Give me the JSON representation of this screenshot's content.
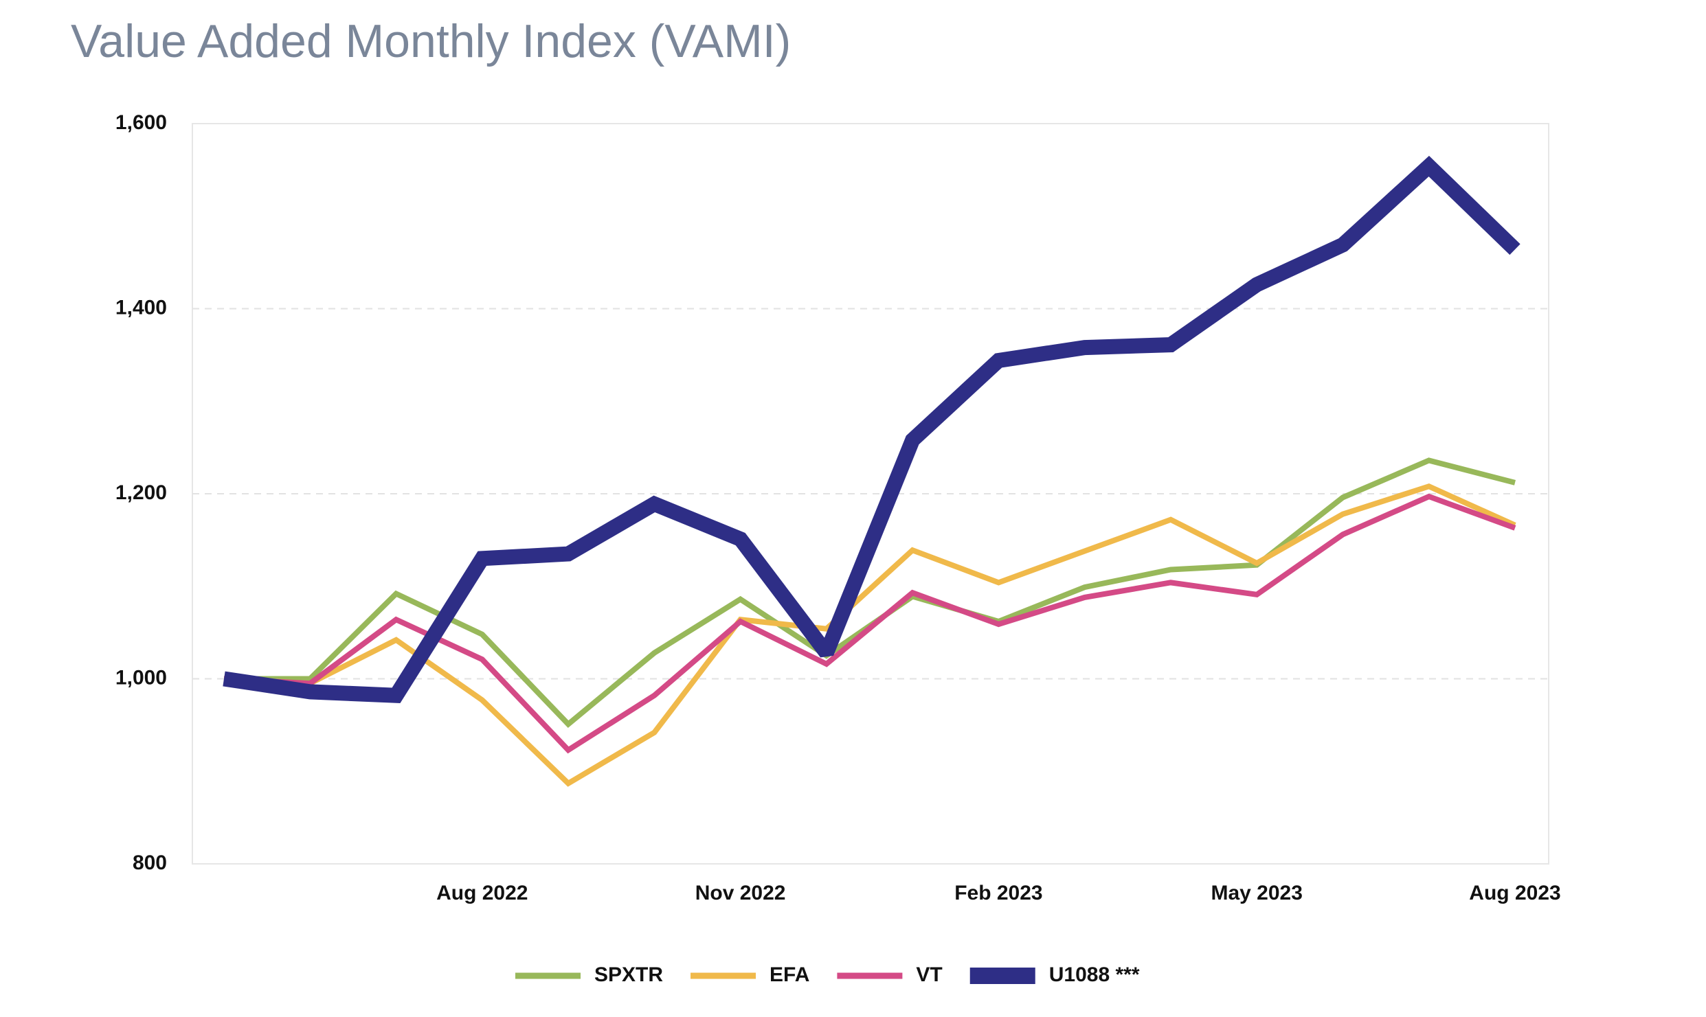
{
  "chart_data": {
    "type": "line",
    "title": "Value Added Monthly Index (VAMI)",
    "categories": [
      null,
      null,
      null,
      "Aug 2022",
      null,
      null,
      "Nov 2022",
      null,
      null,
      "Feb 2023",
      null,
      null,
      "May 2023",
      null,
      null,
      "Aug 2023"
    ],
    "series": [
      {
        "name": "SPXTR",
        "color": "#98b85a",
        "values": [
          1000,
          1000,
          1092,
          1048,
          951,
          1028,
          1086,
          1025,
          1089,
          1062,
          1099,
          1118,
          1123,
          1196,
          1236,
          1212
        ]
      },
      {
        "name": "EFA",
        "color": "#f0b94a",
        "values": [
          1000,
          995,
          1042,
          977,
          887,
          942,
          1064,
          1054,
          1139,
          1104,
          1138,
          1172,
          1125,
          1178,
          1208,
          1166
        ]
      },
      {
        "name": "VT",
        "color": "#d44a86",
        "values": [
          1000,
          995,
          1064,
          1021,
          923,
          982,
          1062,
          1016,
          1093,
          1059,
          1088,
          1104,
          1091,
          1156,
          1197,
          1163
        ]
      },
      {
        "name": "U1088 ***",
        "color": "#2e2e86",
        "values": [
          1000,
          986,
          982,
          1130,
          1135,
          1189,
          1151,
          1028,
          1258,
          1344,
          1358,
          1361,
          1426,
          1469,
          1554,
          1464
        ]
      }
    ],
    "ylim": [
      800,
      1600
    ],
    "yticks": [
      800,
      {
        "value": 1000,
        "label": "1,000"
      },
      {
        "value": 1200,
        "label": "1,200"
      },
      {
        "value": 1400,
        "label": "1,400"
      },
      {
        "value": 1600,
        "label": "1,600"
      }
    ],
    "grid": true,
    "legend": "bottom"
  }
}
